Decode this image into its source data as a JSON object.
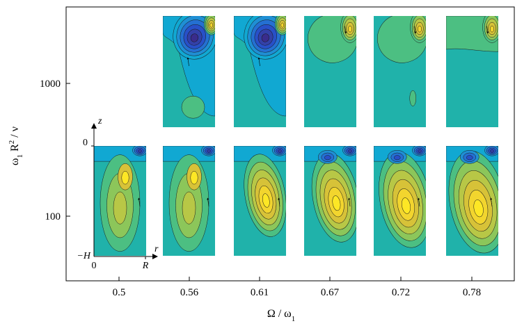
{
  "chart_data": {
    "type": "contour-panel-grid",
    "title": "",
    "xlabel": {
      "main": "Ω / ω",
      "sub": "1"
    },
    "ylabel": {
      "a": "ω",
      "sub": "1",
      "b": " R",
      "sup": "2",
      "c": " / ν"
    },
    "x_categories": [
      "0.5",
      "0.56",
      "0.61",
      "0.67",
      "0.72",
      "0.78"
    ],
    "y_categories": [
      "100",
      "1000"
    ],
    "panels": [
      {
        "row": "1000",
        "col": "0.56",
        "vortex": "strong-negative",
        "blob": "weak-positive-lower"
      },
      {
        "row": "1000",
        "col": "0.61",
        "vortex": "strong-negative",
        "blob": "none"
      },
      {
        "row": "1000",
        "col": "0.67",
        "vortex": "positive-corner",
        "blob": "none"
      },
      {
        "row": "1000",
        "col": "0.72",
        "vortex": "positive-corner",
        "blob": "small-lower"
      },
      {
        "row": "1000",
        "col": "0.78",
        "vortex": "positive-corner",
        "blob": "band"
      },
      {
        "row": "100",
        "col": "0.5",
        "vortex": "positive-elongated",
        "blob": "none"
      },
      {
        "row": "100",
        "col": "0.56",
        "vortex": "positive-elongated",
        "blob": "none"
      },
      {
        "row": "100",
        "col": "0.61",
        "vortex": "positive-core",
        "blob": "none"
      },
      {
        "row": "100",
        "col": "0.67",
        "vortex": "positive-core",
        "blob": "none"
      },
      {
        "row": "100",
        "col": "0.72",
        "vortex": "positive-core",
        "blob": "none"
      },
      {
        "row": "100",
        "col": "0.78",
        "vortex": "positive-core",
        "blob": "none"
      }
    ],
    "inset_axes": {
      "z_label": "z",
      "r_label": "r",
      "top_label": "0",
      "bottom_label": "−H",
      "origin_label": "0",
      "right_label": "R"
    },
    "colors": {
      "background": "#20b2aa",
      "deep_negative": "#3a2c8c",
      "negative": "#2850c8",
      "mild_negative": "#1f8fd4",
      "light_negative": "#11a8d2",
      "mild_positive": "#4cbf82",
      "positive": "#8cc65a",
      "strong_positive": "#d7c238",
      "peak_positive": "#fde725"
    }
  }
}
